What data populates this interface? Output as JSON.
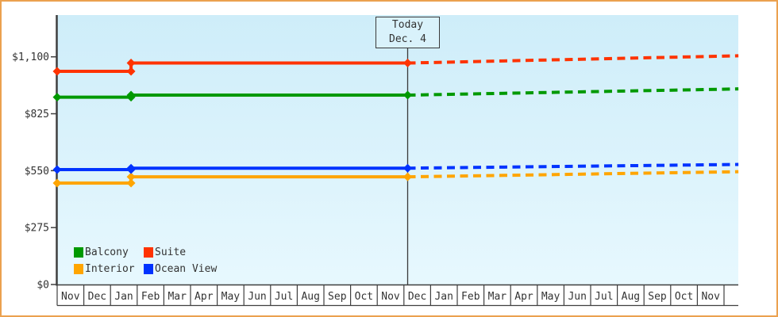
{
  "window": {
    "background": "#FFFFFF",
    "frame_border_color": "#EBA14F"
  },
  "colors": {
    "plot_bg_top": "#CEEDF9",
    "plot_bg_bottom": "#E7F8FE",
    "axis": "#3F3F3F",
    "text": "#333333",
    "today_box_bg": "#D9F2FB",
    "today_line": "#3a3a3a"
  },
  "chart_data": {
    "type": "line",
    "title": "",
    "description": "Cabin price history by month with solid history, markers, and dotted forecast after today",
    "y_ticks": [
      {
        "value": 0,
        "label": "$0"
      },
      {
        "value": 275,
        "label": "$275"
      },
      {
        "value": 550,
        "label": "$550"
      },
      {
        "value": 825,
        "label": "$825"
      },
      {
        "value": 1100,
        "label": "$1,100"
      }
    ],
    "ylim": [
      0,
      1300
    ],
    "grid": false,
    "x_months": [
      "Nov",
      "Dec",
      "Jan",
      "Feb",
      "Mar",
      "Apr",
      "May",
      "Jun",
      "Jul",
      "Aug",
      "Sep",
      "Oct",
      "Nov",
      "Dec",
      "Jan",
      "Feb",
      "Mar",
      "Apr",
      "May",
      "Jun",
      "Jul",
      "Aug",
      "Sep",
      "Oct",
      "Nov"
    ],
    "today": {
      "x_index": 13.14
    },
    "x_end_index": 25.54,
    "series": [
      {
        "name": "Balcony",
        "color": "#009900",
        "solid": [
          [
            0,
            905
          ],
          [
            2.77,
            905
          ],
          [
            2.77,
            915
          ],
          [
            13.14,
            915
          ]
        ],
        "forecast": [
          [
            13.14,
            915
          ],
          [
            25.54,
            945
          ]
        ],
        "markers": [
          [
            0,
            905
          ],
          [
            2.77,
            905
          ],
          [
            2.77,
            915
          ],
          [
            13.14,
            915
          ]
        ]
      },
      {
        "name": "Suite",
        "color": "#FF3300",
        "solid": [
          [
            0,
            1030
          ],
          [
            2.77,
            1030
          ],
          [
            2.77,
            1070
          ],
          [
            13.14,
            1070
          ]
        ],
        "forecast": [
          [
            13.14,
            1070
          ],
          [
            25.54,
            1105
          ]
        ],
        "markers": [
          [
            0,
            1030
          ],
          [
            2.77,
            1030
          ],
          [
            2.77,
            1070
          ],
          [
            13.14,
            1070
          ]
        ]
      },
      {
        "name": "Interior",
        "color": "#FFA500",
        "solid": [
          [
            0,
            490
          ],
          [
            2.77,
            490
          ],
          [
            2.77,
            520
          ],
          [
            13.14,
            520
          ]
        ],
        "forecast": [
          [
            13.14,
            520
          ],
          [
            25.54,
            545
          ]
        ],
        "markers": [
          [
            0,
            490
          ],
          [
            2.77,
            490
          ],
          [
            2.77,
            520
          ],
          [
            13.14,
            520
          ]
        ]
      },
      {
        "name": "Ocean View",
        "color": "#0033FF",
        "solid": [
          [
            0,
            555
          ],
          [
            2.77,
            555
          ],
          [
            2.77,
            562
          ],
          [
            13.14,
            562
          ]
        ],
        "forecast": [
          [
            13.14,
            562
          ],
          [
            25.54,
            580
          ]
        ],
        "markers": [
          [
            0,
            555
          ],
          [
            2.77,
            555
          ],
          [
            2.77,
            562
          ],
          [
            13.14,
            562
          ]
        ]
      }
    ],
    "legend_position": "bottom-left-inside"
  },
  "today_box": {
    "line1": "Today",
    "line2": "Dec. 4"
  },
  "legend": {
    "items": [
      {
        "label": "Balcony",
        "color": "#009900"
      },
      {
        "label": "Suite",
        "color": "#FF3300"
      },
      {
        "label": "Interior",
        "color": "#FFA500"
      },
      {
        "label": "Ocean View",
        "color": "#0033FF"
      }
    ]
  }
}
